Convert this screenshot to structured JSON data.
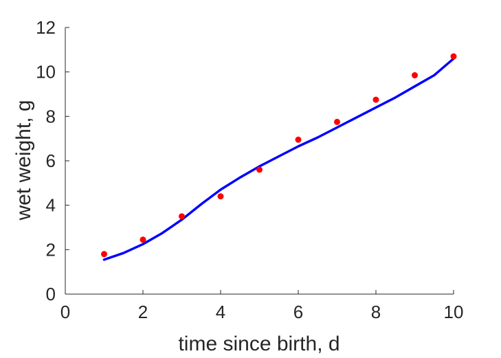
{
  "chart_data": {
    "type": "scatter",
    "xlabel": "time since birth, d",
    "ylabel": "wet weight, g",
    "xlim": [
      0,
      10
    ],
    "ylim": [
      0,
      12
    ],
    "xticks": [
      0,
      2,
      4,
      6,
      8,
      10
    ],
    "yticks": [
      0,
      2,
      4,
      6,
      8,
      10,
      12
    ],
    "grid": false,
    "series": [
      {
        "kind": "points",
        "color": "#ff0000",
        "x": [
          1,
          2,
          3,
          4,
          5,
          6,
          7,
          8,
          9,
          10
        ],
        "y": [
          1.8,
          2.45,
          3.5,
          4.4,
          5.6,
          6.95,
          7.75,
          8.75,
          9.85,
          10.7
        ]
      },
      {
        "kind": "line",
        "color": "#0000ff",
        "x": [
          1,
          1.5,
          2,
          2.5,
          3,
          3.5,
          4,
          4.5,
          5,
          5.5,
          6,
          6.5,
          7,
          7.5,
          8,
          8.5,
          9,
          9.5,
          10
        ],
        "y": [
          1.55,
          1.85,
          2.25,
          2.75,
          3.35,
          4.05,
          4.7,
          5.25,
          5.75,
          6.2,
          6.65,
          7.05,
          7.5,
          7.95,
          8.4,
          8.85,
          9.35,
          9.85,
          10.6
        ]
      }
    ]
  }
}
